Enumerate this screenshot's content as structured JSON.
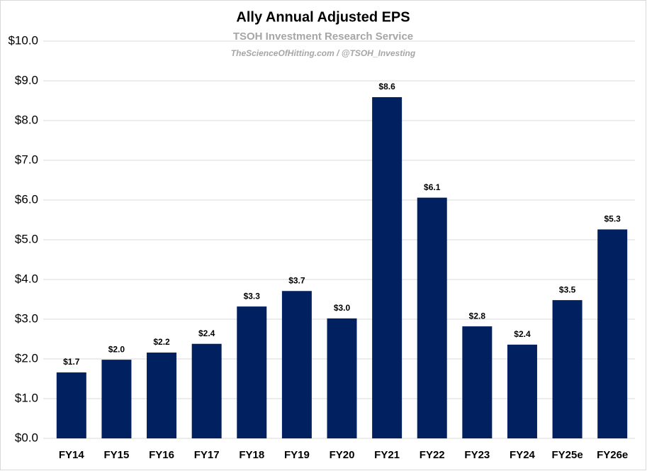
{
  "chart_data": {
    "type": "bar",
    "title": "Ally Annual Adjusted EPS",
    "subtitle": "TSOH Investment Research Service",
    "source": "TheScienceOfHitting.com / @TSOH_Investing",
    "categories": [
      "FY14",
      "FY15",
      "FY16",
      "FY17",
      "FY18",
      "FY19",
      "FY20",
      "FY21",
      "FY22",
      "FY23",
      "FY24",
      "FY25e",
      "FY26e"
    ],
    "values": [
      1.66,
      1.98,
      2.16,
      2.38,
      3.32,
      3.71,
      3.02,
      8.59,
      6.06,
      2.82,
      2.36,
      3.48,
      5.26
    ],
    "value_labels": [
      "$1.7",
      "$2.0",
      "$2.2",
      "$2.4",
      "$3.3",
      "$3.7",
      "$3.0",
      "$8.6",
      "$6.1",
      "$2.8",
      "$2.4",
      "$3.5",
      "$5.3"
    ],
    "color": "#002060",
    "ylim": [
      0,
      10
    ],
    "yticks": [
      {
        "value": 0,
        "label": "$0.0"
      },
      {
        "value": 1,
        "label": "$1.0"
      },
      {
        "value": 2,
        "label": "$2.0"
      },
      {
        "value": 3,
        "label": "$3.0"
      },
      {
        "value": 4,
        "label": "$4.0"
      },
      {
        "value": 5,
        "label": "$5.0"
      },
      {
        "value": 6,
        "label": "$6.0"
      },
      {
        "value": 7,
        "label": "$7.0"
      },
      {
        "value": 8,
        "label": "$8.0"
      },
      {
        "value": 9,
        "label": "$9.0"
      },
      {
        "value": 10,
        "label": "$10.0"
      }
    ],
    "grid": true
  }
}
